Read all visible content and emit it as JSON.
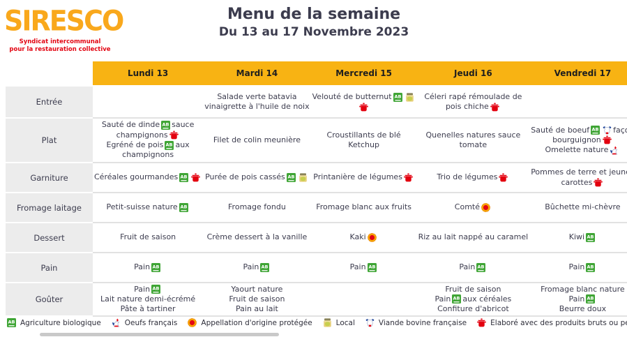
{
  "logo": {
    "title": "SIRESCO",
    "tagline_line1": "Syndicat intercommunal",
    "tagline_line2": "pour la restauration collective"
  },
  "header": {
    "title": "Menu de la semaine",
    "subtitle": "Du 13 au 17 Novembre 2023"
  },
  "colors": {
    "accent_yellow": "#F8B313",
    "logo_orange": "#F9A81C",
    "tagline_red": "#E30613",
    "text_dark": "#3C3C4E",
    "row_label_bg": "#ECECEC",
    "pot_red": "#E3000F",
    "ab_green": "#3FA535",
    "aop_orange": "#F7A600",
    "aop_center_red": "#E30613",
    "local_jar_yellow": "#E7D07A"
  },
  "days": [
    "Lundi 13",
    "Mardi 14",
    "Mercredi 15",
    "Jeudi 16",
    "Vendredi 17"
  ],
  "rows": [
    {
      "label": "Entrée",
      "cells": [
        [],
        [
          [
            {
              "t": "Salade verte batavia"
            }
          ],
          [
            {
              "t": "vinaigrette à l'huile de noix"
            }
          ]
        ],
        [
          [
            {
              "t": "Velouté de butternut"
            },
            {
              "i": "ab"
            },
            {
              "i": "local"
            }
          ],
          [
            {
              "i": "pot"
            }
          ]
        ],
        [
          [
            {
              "t": "Céleri rapé rémoulade de"
            }
          ],
          [
            {
              "t": "pois chiche"
            },
            {
              "i": "pot"
            }
          ]
        ],
        []
      ]
    },
    {
      "label": "Plat",
      "cells": [
        [
          [
            {
              "t": "Sauté de dinde"
            },
            {
              "i": "ab"
            },
            {
              "t": "sauce"
            }
          ],
          [
            {
              "t": "champignons"
            },
            {
              "i": "pot"
            }
          ],
          [
            {
              "t": "Egréné de pois"
            },
            {
              "i": "ab"
            },
            {
              "t": "aux"
            }
          ],
          [
            {
              "t": "champignons"
            }
          ]
        ],
        [
          [
            {
              "t": "Filet de colin meunière"
            }
          ]
        ],
        [
          [
            {
              "t": "Croustillants de blé"
            }
          ],
          [
            {
              "t": "Ketchup"
            }
          ]
        ],
        [
          [
            {
              "t": "Quenelles natures sauce"
            }
          ],
          [
            {
              "t": "tomate"
            }
          ]
        ],
        [
          [
            {
              "t": "Sauté de boeuf"
            },
            {
              "i": "ab"
            },
            {
              "i": "beef"
            },
            {
              "t": "façon"
            }
          ],
          [
            {
              "t": "bourguignon"
            },
            {
              "i": "pot"
            }
          ],
          [
            {
              "t": "Omelette nature"
            },
            {
              "i": "eggs"
            }
          ]
        ]
      ]
    },
    {
      "label": "Garniture",
      "cells": [
        [
          [
            {
              "t": "Céréales gourmandes"
            },
            {
              "i": "ab"
            },
            {
              "i": "pot"
            }
          ]
        ],
        [
          [
            {
              "t": "Purée de pois cassés"
            },
            {
              "i": "ab"
            },
            {
              "i": "local"
            }
          ]
        ],
        [
          [
            {
              "t": "Printanière de légumes"
            },
            {
              "i": "pot"
            }
          ]
        ],
        [
          [
            {
              "t": "Trio de légumes"
            },
            {
              "i": "pot"
            }
          ]
        ],
        [
          [
            {
              "t": "Pommes de terre et jeunes"
            }
          ],
          [
            {
              "t": "carottes"
            },
            {
              "i": "pot"
            }
          ]
        ]
      ]
    },
    {
      "label": "Fromage laitage",
      "cells": [
        [
          [
            {
              "t": "Petit-suisse nature"
            },
            {
              "i": "ab"
            }
          ]
        ],
        [
          [
            {
              "t": "Fromage fondu"
            }
          ]
        ],
        [
          [
            {
              "t": "Fromage blanc aux fruits"
            }
          ]
        ],
        [
          [
            {
              "t": "Comté"
            },
            {
              "i": "aop"
            }
          ]
        ],
        [
          [
            {
              "t": "Bûchette mi-chèvre"
            }
          ]
        ]
      ]
    },
    {
      "label": "Dessert",
      "cells": [
        [
          [
            {
              "t": "Fruit de saison"
            }
          ]
        ],
        [
          [
            {
              "t": "Crème dessert à la vanille"
            }
          ]
        ],
        [
          [
            {
              "t": "Kaki"
            },
            {
              "i": "aop"
            }
          ]
        ],
        [
          [
            {
              "t": "Riz au lait nappé au caramel"
            }
          ]
        ],
        [
          [
            {
              "t": "Kiwi"
            },
            {
              "i": "ab"
            }
          ]
        ]
      ]
    },
    {
      "label": "Pain",
      "cells": [
        [
          [
            {
              "t": "Pain"
            },
            {
              "i": "ab"
            }
          ]
        ],
        [
          [
            {
              "t": "Pain"
            },
            {
              "i": "ab"
            }
          ]
        ],
        [
          [
            {
              "t": "Pain"
            },
            {
              "i": "ab"
            }
          ]
        ],
        [
          [
            {
              "t": "Pain"
            },
            {
              "i": "ab"
            }
          ]
        ],
        [
          [
            {
              "t": "Pain"
            },
            {
              "i": "ab"
            }
          ]
        ]
      ]
    },
    {
      "label": "Goûter",
      "cells": [
        [
          [
            {
              "t": "Pain"
            },
            {
              "i": "ab"
            }
          ],
          [
            {
              "t": "Lait nature demi-écrémé"
            }
          ],
          [
            {
              "t": "Pâte à tartiner"
            }
          ]
        ],
        [
          [
            {
              "t": "Yaourt nature"
            }
          ],
          [
            {
              "t": "Fruit de saison"
            }
          ],
          [
            {
              "t": "Pain au lait"
            }
          ]
        ],
        [],
        [
          [
            {
              "t": "Fruit de saison"
            }
          ],
          [
            {
              "t": "Pain"
            },
            {
              "i": "ab"
            },
            {
              "t": "aux céréales"
            }
          ],
          [
            {
              "t": "Confiture d'abricot"
            }
          ]
        ],
        [
          [
            {
              "t": "Fromage blanc nature"
            }
          ],
          [
            {
              "t": "Pain"
            },
            {
              "i": "ab"
            }
          ],
          [
            {
              "t": "Beurre doux"
            }
          ]
        ]
      ]
    }
  ],
  "legend": [
    {
      "icon": "ab",
      "label": "Agriculture biologique"
    },
    {
      "icon": "eggs",
      "label": "Oeufs français"
    },
    {
      "icon": "aop",
      "label": "Appellation d'origine protégée"
    },
    {
      "icon": "local",
      "label": "Local"
    },
    {
      "icon": "beef",
      "label": "Viande bovine française"
    },
    {
      "icon": "pot",
      "label": "Elaboré avec des produits bruts ou peu tranformés"
    }
  ]
}
